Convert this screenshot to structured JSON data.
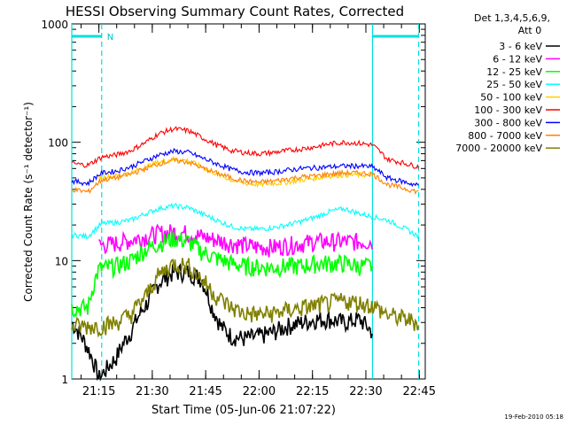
{
  "chart_data": {
    "type": "line",
    "title": "HESSI Observing Summary Count Rates, Corrected",
    "xlabel": "Start Time (05-Jun-06 21:07:22)",
    "ylabel": "Corrected Count Rate (s⁻¹ detector⁻¹)",
    "yscale": "log",
    "ylim": [
      1,
      1000
    ],
    "xlim_minutes": [
      21.15,
      22.7778
    ],
    "x_ticks": [
      "21:15",
      "21:30",
      "21:45",
      "22:00",
      "22:15",
      "22:30",
      "22:45"
    ],
    "y_ticks": [
      "1",
      "10",
      "100",
      "1000"
    ],
    "footer_date": "19-Feb-2010 05:18",
    "legend_header": [
      "Det 1,3,4,5,6,9,",
      "Att 0"
    ],
    "legend_position": "right",
    "night_marker_label": "N",
    "annotations": {
      "vertical_lines_solid_hours": [
        21.123,
        22.531
      ],
      "vertical_lines_dashed_hours": [
        21.263,
        22.747
      ],
      "night_bars_hours": [
        [
          21.123,
          21.263
        ],
        [
          22.531,
          22.747
        ]
      ]
    },
    "series": [
      {
        "name": "3 - 6 keV",
        "color": "#000000",
        "x": [
          21.123,
          21.25,
          21.33,
          21.4,
          21.48,
          21.53,
          21.6,
          21.67,
          21.73,
          21.78,
          21.82,
          21.87,
          21.93,
          22.0,
          22.07,
          22.13,
          22.2,
          22.27,
          22.33,
          22.4,
          22.47,
          22.53
        ],
        "y": [
          3.0,
          1.0,
          1.5,
          2.5,
          4.5,
          6.5,
          8.0,
          8.0,
          7.0,
          4.0,
          2.8,
          2.3,
          2.2,
          2.3,
          2.5,
          2.8,
          3.0,
          3.2,
          3.2,
          3.0,
          3.2,
          2.5
        ]
      },
      {
        "name": "6 - 12 keV",
        "color": "#ff00ff",
        "x": [
          21.25,
          21.33,
          21.4,
          21.47,
          21.53,
          21.6,
          21.67,
          21.73,
          21.8,
          21.87,
          21.93,
          22.0,
          22.07,
          22.13,
          22.2,
          22.27,
          22.33,
          22.4,
          22.47,
          22.53
        ],
        "y": [
          13.5,
          14.0,
          15.0,
          16.0,
          17.0,
          17.5,
          17.0,
          16.0,
          15.0,
          14.0,
          13.5,
          13.0,
          13.0,
          13.5,
          14.0,
          14.5,
          14.5,
          14.5,
          14.5,
          14.5
        ]
      },
      {
        "name": "12 - 25 keV",
        "color": "#00ff00",
        "x": [
          21.123,
          21.2,
          21.25,
          21.33,
          21.4,
          21.47,
          21.53,
          21.6,
          21.67,
          21.73,
          21.8,
          21.87,
          21.93,
          22.0,
          22.07,
          22.13,
          22.2,
          22.27,
          22.33,
          22.4,
          22.47,
          22.53
        ],
        "y": [
          4.0,
          4.0,
          8.5,
          9.0,
          10.0,
          12.5,
          14.0,
          15.5,
          14.5,
          12.0,
          10.5,
          9.5,
          9.0,
          8.8,
          8.8,
          9.0,
          9.0,
          9.5,
          9.5,
          9.5,
          9.0,
          9.0
        ]
      },
      {
        "name": "25 - 50 keV",
        "color": "#00ffff",
        "x": [
          21.123,
          21.2,
          21.263,
          21.33,
          21.4,
          21.47,
          21.53,
          21.6,
          21.67,
          21.73,
          21.8,
          21.87,
          21.93,
          22.0,
          22.07,
          22.13,
          22.2,
          22.27,
          22.33,
          22.4,
          22.47,
          22.53,
          22.6,
          22.747
        ],
        "y": [
          16.5,
          16.0,
          20.5,
          21.0,
          22.0,
          25.0,
          27.5,
          29.0,
          28.0,
          25.0,
          22.0,
          19.5,
          18.5,
          18.5,
          19.0,
          20.0,
          21.5,
          23.5,
          26.0,
          27.5,
          25.0,
          23.5,
          22.0,
          16.0
        ]
      },
      {
        "name": "50 - 100 keV",
        "color": "#ffcc00",
        "x": [
          21.25,
          21.33,
          21.4,
          21.47,
          21.53,
          21.6,
          21.67,
          21.73,
          21.8,
          21.87,
          21.93,
          22.0,
          22.07,
          22.13,
          22.2,
          22.27,
          22.33,
          22.4,
          22.47,
          22.53
        ],
        "y": [
          50.0,
          52.0,
          55.0,
          62.0,
          68.0,
          72.0,
          70.0,
          62.0,
          54.0,
          48.0,
          45.0,
          44.0,
          45.0,
          46.0,
          48.0,
          50.0,
          52.0,
          53.0,
          53.0,
          53.0
        ]
      },
      {
        "name": "100 - 300 keV",
        "color": "#ff0000",
        "x": [
          21.123,
          21.2,
          21.263,
          21.33,
          21.4,
          21.47,
          21.53,
          21.6,
          21.67,
          21.73,
          21.8,
          21.87,
          21.93,
          22.0,
          22.07,
          22.13,
          22.2,
          22.27,
          22.33,
          22.4,
          22.47,
          22.53,
          22.6,
          22.747
        ],
        "y": [
          66.0,
          64.0,
          75.0,
          78.0,
          85.0,
          100.0,
          118.0,
          130.0,
          125.0,
          110.0,
          95.0,
          85.0,
          82.0,
          80.0,
          82.0,
          85.0,
          88.0,
          92.0,
          97.0,
          100.0,
          98.0,
          95.0,
          72.0,
          62.0
        ]
      },
      {
        "name": "300 - 800 keV",
        "color": "#0000ff",
        "x": [
          21.123,
          21.2,
          21.263,
          21.33,
          21.4,
          21.47,
          21.53,
          21.6,
          21.67,
          21.73,
          21.8,
          21.87,
          21.93,
          22.0,
          22.07,
          22.13,
          22.2,
          22.27,
          22.33,
          22.4,
          22.47,
          22.53,
          22.6,
          22.747
        ],
        "y": [
          47.0,
          45.0,
          55.0,
          57.0,
          62.0,
          70.0,
          78.0,
          84.0,
          82.0,
          74.0,
          66.0,
          59.0,
          56.0,
          55.0,
          56.0,
          58.0,
          60.0,
          61.0,
          62.0,
          63.0,
          63.0,
          62.0,
          50.0,
          43.0
        ]
      },
      {
        "name": "800 - 7000 keV",
        "color": "#ff8000",
        "x": [
          21.123,
          21.2,
          21.263,
          21.33,
          21.4,
          21.47,
          21.53,
          21.6,
          21.67,
          21.73,
          21.8,
          21.87,
          21.93,
          22.0,
          22.07,
          22.13,
          22.2,
          22.27,
          22.33,
          22.4,
          22.47,
          22.53,
          22.6,
          22.747
        ],
        "y": [
          40.0,
          38.0,
          48.0,
          50.0,
          54.0,
          60.0,
          66.0,
          70.0,
          68.0,
          61.0,
          55.0,
          50.0,
          47.0,
          46.0,
          47.0,
          49.0,
          51.0,
          52.0,
          54.0,
          55.0,
          55.0,
          54.0,
          44.0,
          38.0
        ]
      },
      {
        "name": "7000 - 20000 keV",
        "color": "#808000",
        "x": [
          21.123,
          21.2,
          21.263,
          21.33,
          21.4,
          21.47,
          21.53,
          21.6,
          21.67,
          21.73,
          21.8,
          21.87,
          21.93,
          22.0,
          22.07,
          22.13,
          22.2,
          22.27,
          22.33,
          22.4,
          22.47,
          22.53,
          22.6,
          22.747
        ],
        "y": [
          2.8,
          2.8,
          2.8,
          3.0,
          3.5,
          5.0,
          7.5,
          9.5,
          9.0,
          7.0,
          5.0,
          4.0,
          3.6,
          3.5,
          3.6,
          3.8,
          4.0,
          4.2,
          4.4,
          4.6,
          4.4,
          4.2,
          3.5,
          3.0
        ]
      }
    ]
  }
}
